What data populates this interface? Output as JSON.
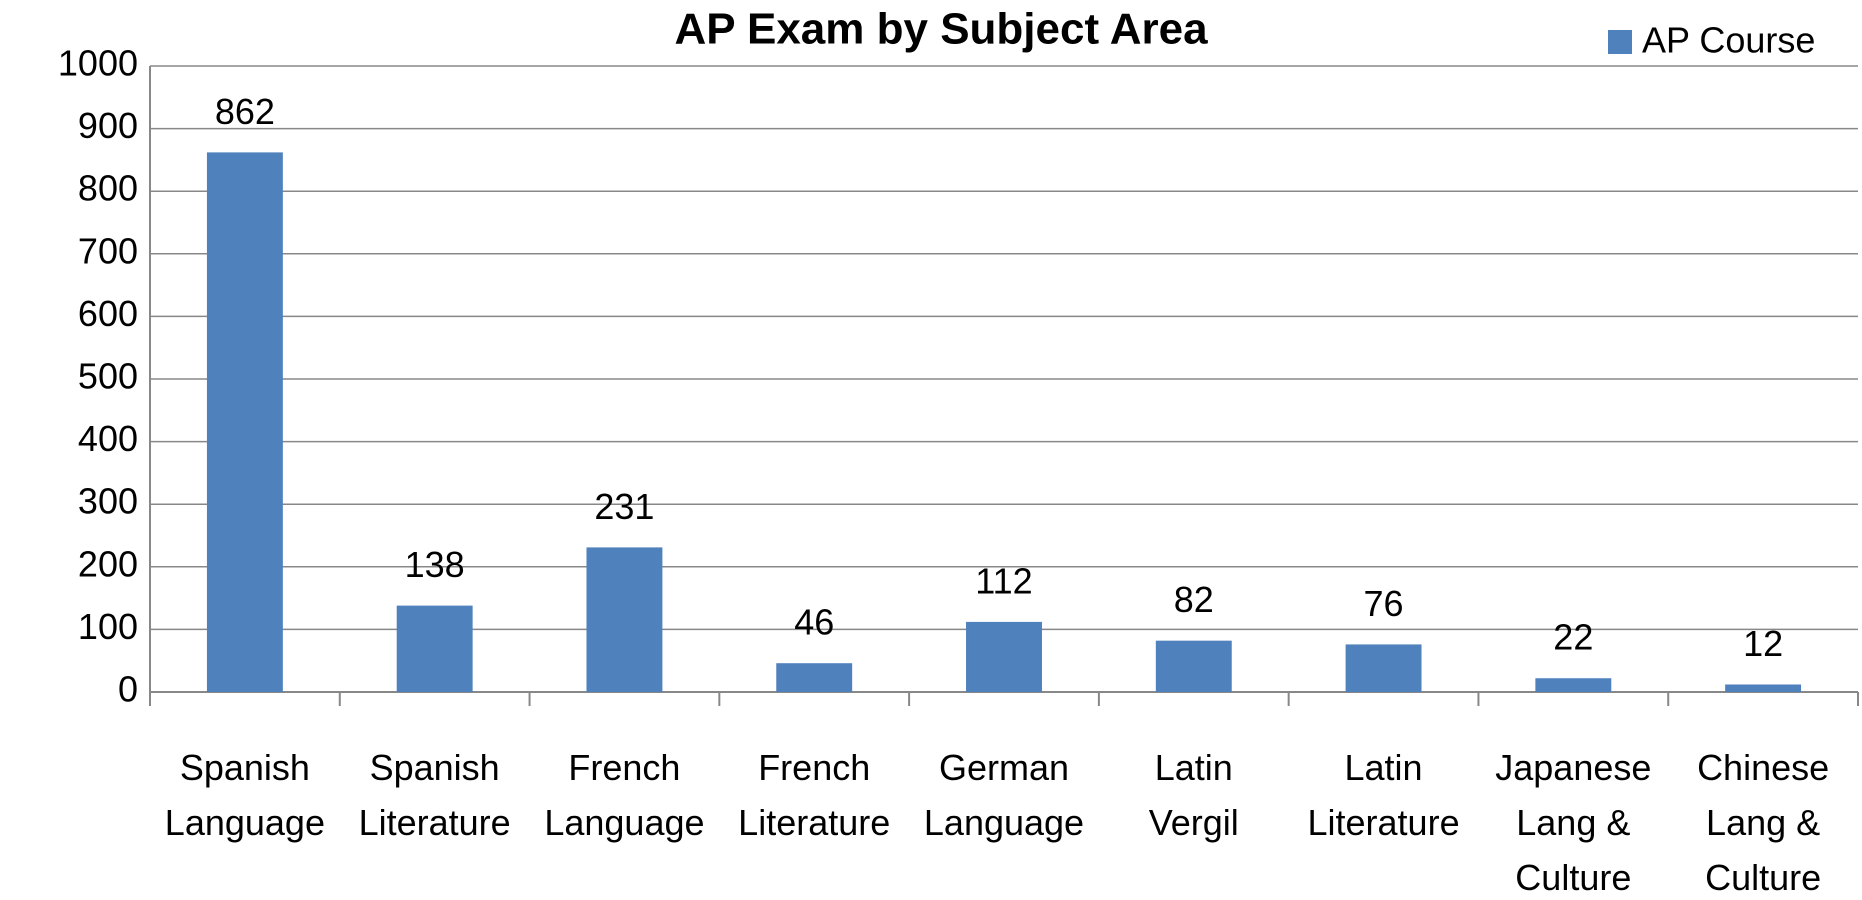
{
  "chart_data": {
    "type": "bar",
    "title": "AP Exam by Subject Area",
    "categories": [
      [
        "Spanish",
        "Language"
      ],
      [
        "Spanish",
        "Literature"
      ],
      [
        "French",
        "Language"
      ],
      [
        "French",
        "Literature"
      ],
      [
        "German",
        "Language"
      ],
      [
        "Latin",
        "Vergil"
      ],
      [
        "Latin",
        "Literature"
      ],
      [
        "Japanese",
        "Lang &",
        "Culture"
      ],
      [
        "Chinese",
        "Lang  &",
        "Culture"
      ]
    ],
    "series": [
      {
        "name": "AP Course",
        "color": "#4f81bd",
        "values": [
          862,
          138,
          231,
          46,
          112,
          82,
          76,
          22,
          12
        ]
      }
    ],
    "ylim": [
      0,
      1000
    ],
    "yticks": [
      0,
      100,
      200,
      300,
      400,
      500,
      600,
      700,
      800,
      900,
      1000
    ],
    "grid": true,
    "legend": "top-right"
  }
}
